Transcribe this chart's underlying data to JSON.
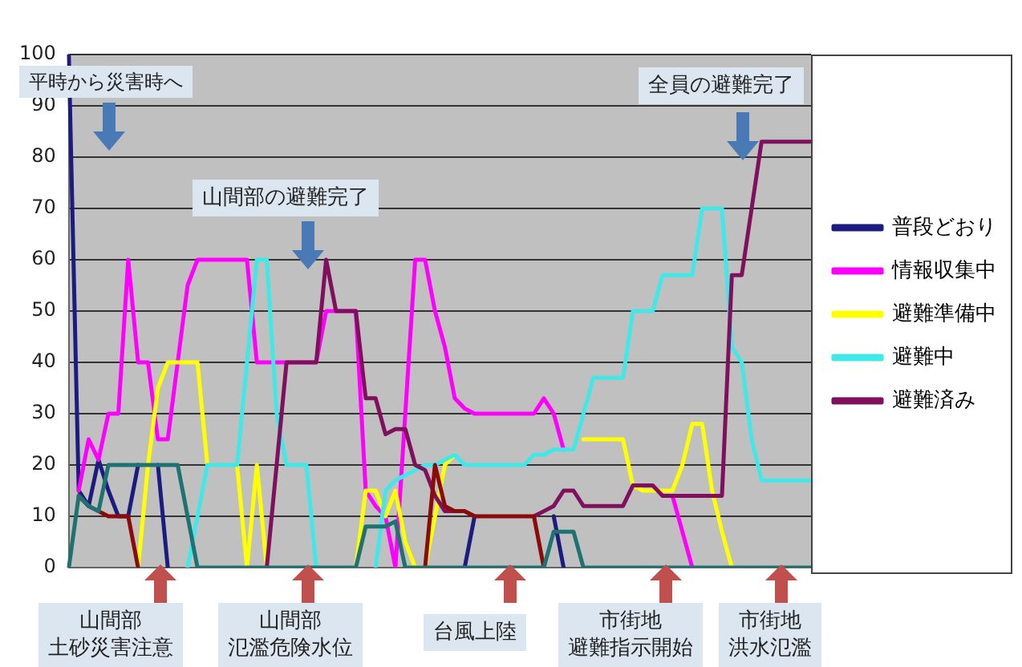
{
  "chart_data": {
    "type": "line",
    "categories": [
      null,
      null,
      null,
      null,
      null,
      null,
      null,
      null,
      null,
      null,
      null,
      null,
      null,
      null,
      null,
      null,
      null,
      null,
      null,
      null,
      null,
      null,
      null,
      null,
      null,
      null,
      null,
      null,
      null,
      null,
      null,
      null,
      null,
      null,
      null,
      null,
      null,
      null,
      null,
      null,
      null,
      null,
      null,
      null,
      null,
      null,
      null,
      null,
      null,
      null,
      null,
      null,
      null,
      null,
      null,
      null,
      null,
      null,
      null,
      null,
      null,
      null,
      null,
      null,
      null,
      null,
      null,
      null,
      null,
      null,
      null,
      null,
      null,
      null,
      null,
      null
    ],
    "series": [
      {
        "name": "普段どおり",
        "color": "#1c1c80",
        "values": [
          100,
          15,
          12,
          21,
          15,
          10,
          10,
          20,
          null,
          20,
          0,
          null,
          null,
          null,
          null,
          null,
          null,
          null,
          null,
          null,
          null,
          null,
          null,
          null,
          null,
          null,
          null,
          null,
          null,
          null,
          null,
          null,
          null,
          null,
          null,
          null,
          null,
          null,
          null,
          null,
          0,
          10,
          null,
          null,
          null,
          null,
          null,
          null,
          null,
          10,
          0,
          null,
          null,
          null,
          null,
          null,
          null,
          null,
          null,
          null,
          null,
          null,
          null,
          null,
          null,
          null,
          null,
          null,
          null,
          null,
          null,
          null,
          null,
          null,
          null,
          null
        ]
      },
      {
        "name": "情報収集中",
        "color": "#ff00ff",
        "values": [
          null,
          15,
          25,
          21,
          30,
          30,
          60,
          40,
          40,
          25,
          25,
          40,
          55,
          60,
          60,
          60,
          60,
          60,
          60,
          40,
          40,
          40,
          40,
          40,
          40,
          40,
          50,
          50,
          50,
          50,
          15,
          12,
          10,
          0,
          30,
          60,
          60,
          50,
          43,
          33,
          31,
          30,
          30,
          30,
          30,
          30,
          30,
          30,
          33,
          30,
          23,
          null,
          null,
          null,
          null,
          null,
          null,
          null,
          null,
          null,
          14,
          14,
          7,
          0,
          null,
          null,
          null,
          null,
          null,
          null,
          null,
          null,
          null,
          null,
          null,
          null
        ]
      },
      {
        "name": "避難準備中",
        "color": "#ffff00",
        "values": [
          null,
          null,
          null,
          null,
          null,
          null,
          null,
          0,
          20,
          35,
          40,
          40,
          40,
          40,
          20,
          null,
          null,
          20,
          0,
          20,
          0,
          null,
          null,
          null,
          null,
          null,
          null,
          null,
          null,
          0,
          15,
          15,
          10,
          15,
          5,
          0,
          0,
          10,
          20,
          22,
          null,
          null,
          null,
          null,
          null,
          null,
          null,
          null,
          null,
          null,
          null,
          null,
          25,
          25,
          25,
          25,
          25,
          16,
          15,
          15,
          15,
          15,
          20,
          28,
          28,
          15,
          7,
          0,
          null,
          null,
          null,
          null,
          null,
          null,
          null,
          null
        ]
      },
      {
        "name": "避難中",
        "color": "#40e8e8",
        "values": [
          null,
          null,
          null,
          null,
          null,
          null,
          null,
          null,
          null,
          null,
          null,
          null,
          0,
          10,
          20,
          20,
          20,
          20,
          40,
          60,
          60,
          30,
          20,
          20,
          20,
          0,
          null,
          null,
          null,
          null,
          null,
          0,
          15,
          17,
          18,
          19,
          20,
          20,
          21,
          22,
          20,
          20,
          20,
          20,
          20,
          20,
          20,
          22,
          22,
          23,
          23,
          23,
          30,
          37,
          37,
          37,
          37,
          50,
          50,
          50,
          57,
          57,
          57,
          57,
          70,
          70,
          70,
          43,
          40,
          25,
          17,
          17,
          17,
          17,
          17,
          17
        ]
      },
      {
        "name": "避難済み",
        "color": "#80105e",
        "values": [
          null,
          null,
          null,
          null,
          null,
          null,
          null,
          null,
          null,
          null,
          null,
          null,
          null,
          null,
          null,
          null,
          null,
          null,
          null,
          null,
          0,
          20,
          40,
          40,
          40,
          40,
          60,
          50,
          50,
          50,
          33,
          33,
          26,
          27,
          27,
          20,
          19,
          14,
          11,
          11,
          11,
          10,
          null,
          null,
          null,
          null,
          null,
          10,
          11,
          12,
          15,
          15,
          12,
          12,
          12,
          12,
          12,
          16,
          16,
          16,
          14,
          14,
          14,
          14,
          14,
          14,
          14,
          57,
          57,
          70,
          83,
          83,
          83,
          83,
          83,
          83
        ]
      },
      {
        "color": "#8b0a0a",
        "values": [
          null,
          14,
          12,
          11,
          10,
          10,
          10,
          0,
          null,
          null,
          null,
          null,
          null,
          null,
          null,
          null,
          null,
          null,
          null,
          null,
          null,
          null,
          null,
          null,
          null,
          null,
          null,
          null,
          null,
          null,
          null,
          null,
          null,
          null,
          null,
          null,
          0,
          20,
          12,
          11,
          11,
          10,
          10,
          10,
          10,
          10,
          10,
          10,
          0,
          null,
          null,
          null,
          null,
          null,
          null,
          null,
          null,
          null,
          null,
          null,
          null,
          null,
          null,
          null,
          null,
          null,
          null,
          null,
          null,
          null,
          null,
          null,
          null,
          null,
          null,
          null
        ]
      },
      {
        "color": "#1e7272",
        "values": [
          0,
          14,
          12,
          11,
          20,
          20,
          20,
          20,
          20,
          20,
          20,
          20,
          10,
          0,
          0,
          0,
          0,
          0,
          0,
          0,
          0,
          0,
          0,
          0,
          0,
          0,
          0,
          0,
          0,
          0,
          8,
          8,
          8,
          9,
          0,
          0,
          0,
          0,
          0,
          0,
          0,
          0,
          0,
          0,
          0,
          0,
          0,
          0,
          0,
          7,
          7,
          7,
          0,
          0,
          0,
          0,
          0,
          0,
          0,
          0,
          0,
          0,
          0,
          0,
          0,
          0,
          0,
          0,
          0,
          0,
          0,
          0,
          0,
          0,
          0,
          0
        ]
      }
    ],
    "ylim": [
      0,
      100
    ],
    "yticks": [
      0,
      10,
      20,
      30,
      40,
      50,
      60,
      70,
      80,
      90,
      100
    ],
    "grid": "y",
    "legend": "right",
    "tick_labels": "y",
    "marker": "none",
    "annotations": [
      "平時から災害時へ",
      "山間部の避難完了",
      "全員の避難完了",
      "山間部",
      "土砂災害注意",
      "山間部",
      "氾濫危険水位",
      "台風上陸",
      "市街地",
      "避難指示開始",
      "市街地",
      "洪水氾濫"
    ]
  }
}
